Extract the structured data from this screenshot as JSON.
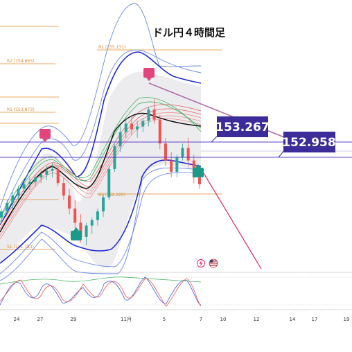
{
  "title": "ドル円４時間足",
  "chart_data": {
    "type": "candlestick",
    "title": "ドル円４時間足",
    "ylim": [
      151.4,
      155.5
    ],
    "pivot_levels": [
      {
        "name": "R1",
        "value": 155.131,
        "label": "R1 (155.131)"
      },
      {
        "name": "R2",
        "value": 154.863,
        "label": "R2 (154.863)"
      },
      {
        "name": "R1",
        "value": 153.873,
        "label": "R1 (153.873)"
      },
      {
        "name": "S1",
        "value": 152.22,
        "label": "S1 (152.220)"
      },
      {
        "name": "S1",
        "value": 151.783,
        "label": "S1 (151.783)"
      }
    ],
    "price_labels": [
      "153.267",
      "152.958"
    ],
    "x_tick_labels": [
      "24",
      "27",
      "29",
      "11月",
      "5",
      "7",
      "10",
      "12",
      "14",
      "17",
      "19"
    ],
    "candles": [
      [
        152.4,
        152.55,
        152.3,
        152.5
      ],
      [
        152.5,
        152.7,
        152.45,
        152.65
      ],
      [
        152.65,
        152.85,
        152.55,
        152.78
      ],
      [
        152.78,
        152.95,
        152.7,
        152.9
      ],
      [
        152.9,
        153.05,
        152.8,
        152.98
      ],
      [
        152.98,
        153.1,
        152.88,
        153.02
      ],
      [
        153.02,
        153.15,
        152.95,
        153.1
      ],
      [
        153.1,
        153.22,
        153.0,
        153.15
      ],
      [
        153.15,
        153.3,
        153.05,
        153.22
      ],
      [
        153.22,
        153.35,
        153.1,
        153.25
      ],
      [
        153.25,
        153.32,
        152.95,
        153.0
      ],
      [
        153.0,
        153.1,
        152.7,
        152.78
      ],
      [
        152.78,
        152.9,
        152.45,
        152.55
      ],
      [
        152.55,
        152.7,
        152.2,
        152.3
      ],
      [
        152.3,
        152.45,
        151.95,
        152.05
      ],
      [
        152.05,
        152.3,
        151.9,
        152.25
      ],
      [
        152.25,
        152.4,
        152.1,
        152.35
      ],
      [
        152.35,
        152.55,
        152.25,
        152.5
      ],
      [
        152.5,
        152.8,
        152.4,
        152.75
      ],
      [
        152.75,
        153.3,
        152.7,
        153.25
      ],
      [
        153.25,
        153.7,
        153.2,
        153.65
      ],
      [
        153.65,
        154.0,
        153.55,
        153.9
      ],
      [
        153.9,
        154.15,
        153.8,
        154.05
      ],
      [
        154.05,
        154.2,
        153.85,
        153.95
      ],
      [
        153.95,
        154.1,
        153.8,
        154.0
      ],
      [
        154.0,
        154.15,
        153.9,
        154.1
      ],
      [
        154.1,
        154.35,
        154.0,
        154.3
      ],
      [
        154.3,
        154.5,
        154.05,
        154.12
      ],
      [
        154.12,
        154.2,
        153.6,
        153.7
      ],
      [
        153.7,
        153.8,
        153.3,
        153.4
      ],
      [
        153.4,
        153.55,
        153.1,
        153.2
      ],
      [
        153.2,
        153.5,
        153.1,
        153.45
      ],
      [
        153.45,
        153.7,
        153.4,
        153.62
      ],
      [
        153.62,
        153.8,
        153.3,
        153.4
      ],
      [
        153.4,
        153.5,
        153.0,
        153.1
      ],
      [
        153.1,
        153.3,
        152.9,
        152.98
      ]
    ],
    "forecast_line": {
      "from": 154.25,
      "to": 153.33
    },
    "forecast_arrow": {
      "from": 152.95,
      "to": 151.6
    },
    "markers": [
      {
        "type": "high",
        "value": 153.42
      },
      {
        "type": "low",
        "value": 151.78
      },
      {
        "type": "high",
        "value": 154.5
      },
      {
        "type": "low",
        "value": 152.8
      }
    ]
  },
  "colors": {
    "bull": "#26a69a",
    "bear": "#ef5350",
    "pivot": "#e08a2b",
    "hline": "#5b3fc4",
    "box": "#3b2c99",
    "trend": "#b06aa8",
    "forecast": "#e0245e",
    "band_outer": "#6b86e0",
    "band_mid": "#1f2ad6",
    "marker_high": "#e0457b",
    "marker_low": "#1b9a8a"
  }
}
